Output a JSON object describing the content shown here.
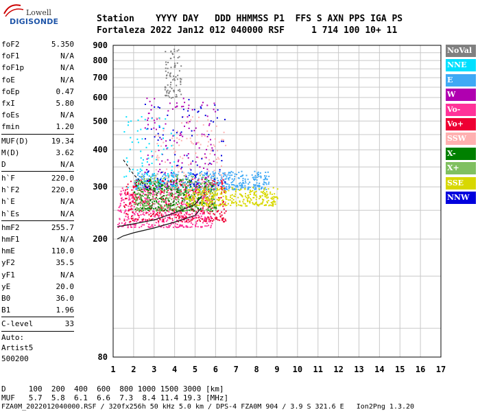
{
  "logo": {
    "line1": "Lowell",
    "line2": "DIGISONDE"
  },
  "header": {
    "row1": "Station    YYYY DAY   DDD HHMMSS P1  FFS S AXN PPS IGA PS",
    "row2": "Fortaleza 2022 Jan12 012 040000 RSF     1 714 100 10+ 11"
  },
  "params": {
    "group1": [
      {
        "name": "foF2",
        "value": "5.350"
      },
      {
        "name": "foF1",
        "value": "N/A"
      },
      {
        "name": "foF1p",
        "value": "N/A"
      },
      {
        "name": "foE",
        "value": "N/A"
      },
      {
        "name": "foEp",
        "value": "0.47"
      },
      {
        "name": "fxI",
        "value": "5.80"
      },
      {
        "name": "foEs",
        "value": "N/A"
      },
      {
        "name": "fmin",
        "value": "1.20"
      }
    ],
    "group2": [
      {
        "name": "MUF(D)",
        "value": "19.34"
      },
      {
        "name": "M(D)",
        "value": "3.62"
      },
      {
        "name": "D",
        "value": "N/A"
      }
    ],
    "group3": [
      {
        "name": "h`F",
        "value": "220.0"
      },
      {
        "name": "h`F2",
        "value": "220.0"
      },
      {
        "name": "h`E",
        "value": "N/A"
      },
      {
        "name": "h`Es",
        "value": "N/A"
      }
    ],
    "group4": [
      {
        "name": "hmF2",
        "value": "255.7"
      },
      {
        "name": "hmF1",
        "value": "N/A"
      },
      {
        "name": "hmE",
        "value": "110.0"
      },
      {
        "name": "yF2",
        "value": "35.5"
      },
      {
        "name": "yF1",
        "value": "N/A"
      },
      {
        "name": "yE",
        "value": "20.0"
      },
      {
        "name": "B0",
        "value": "36.0"
      },
      {
        "name": "B1",
        "value": "1.96"
      }
    ],
    "clevel": {
      "name": "C-level",
      "value": "33"
    },
    "auto": [
      "Auto:",
      "Artist5",
      "500200"
    ]
  },
  "legend": [
    {
      "label": "NoVal",
      "color": "#808080"
    },
    {
      "label": "NNE",
      "color": "#00e0ff"
    },
    {
      "label": "E",
      "color": "#3fa9f5"
    },
    {
      "label": "W",
      "color": "#b000b0"
    },
    {
      "label": "Vo-",
      "color": "#ff3399"
    },
    {
      "label": "Vo+",
      "color": "#ee0033"
    },
    {
      "label": "SSW",
      "color": "#ffb0b0"
    },
    {
      "label": "X-",
      "color": "#008000"
    },
    {
      "label": "X+",
      "color": "#80c060"
    },
    {
      "label": "SSE",
      "color": "#d8d800"
    },
    {
      "label": "NNW",
      "color": "#0000dd"
    }
  ],
  "footer": {
    "d_label": "D",
    "d_values": "100  200  400  600  800 1000 1500 3000 [km]",
    "muf_label": "MUF",
    "muf_values": "5.7  5.8  6.1  6.6  7.3  8.4 11.4 19.3 [MHz]",
    "file_line": "FZA0M_2022012040000.RSF / 320fx256h 50 kHz 5.0 km / DPS-4 FZA0M 904 / 3.9 S 321.6 E   Ion2Png 1.3.20"
  },
  "chart_data": {
    "type": "scatter",
    "title": "",
    "xlabel": "",
    "ylabel": "",
    "xlim": [
      1,
      17
    ],
    "ylim": [
      80,
      900
    ],
    "x_ticks": [
      1,
      2,
      3,
      4,
      5,
      6,
      7,
      8,
      9,
      10,
      11,
      12,
      13,
      14,
      15,
      16,
      17
    ],
    "y_ticks": [
      80,
      200,
      300,
      400,
      500,
      600,
      700,
      800,
      900
    ],
    "y_scale": "log",
    "grid": true,
    "legend_position": "right",
    "clusters": [
      {
        "series": "E",
        "f": [
          2.0,
          8.6
        ],
        "h": [
          295,
          340
        ],
        "density": 0.9
      },
      {
        "series": "Vo-",
        "f": [
          1.2,
          5.8
        ],
        "h": [
          220,
          300
        ],
        "density": 0.9
      },
      {
        "series": "Vo+",
        "f": [
          1.5,
          6.5
        ],
        "h": [
          230,
          320
        ],
        "density": 0.7
      },
      {
        "series": "X-",
        "f": [
          2.0,
          6.0
        ],
        "h": [
          250,
          320
        ],
        "density": 0.6
      },
      {
        "series": "X+",
        "f": [
          2.0,
          6.0
        ],
        "h": [
          250,
          330
        ],
        "density": 0.5
      },
      {
        "series": "SSE",
        "f": [
          4.5,
          9.0
        ],
        "h": [
          260,
          300
        ],
        "density": 0.6
      },
      {
        "series": "W",
        "f": [
          2.5,
          6.0
        ],
        "h": [
          300,
          600
        ],
        "density": 0.25
      },
      {
        "series": "SSW",
        "f": [
          3.0,
          6.5
        ],
        "h": [
          300,
          520
        ],
        "density": 0.25
      },
      {
        "series": "NNW",
        "f": [
          2.5,
          6.5
        ],
        "h": [
          300,
          600
        ],
        "density": 0.15
      },
      {
        "series": "NNE",
        "f": [
          1.5,
          4.0
        ],
        "h": [
          300,
          520
        ],
        "density": 0.15
      },
      {
        "series": "NoVal",
        "f": [
          3.5,
          4.3
        ],
        "h": [
          600,
          880
        ],
        "density": 0.15
      }
    ],
    "trace_lower": {
      "f": [
        1.2,
        1.5,
        2.0,
        3.0,
        4.0,
        5.0,
        5.3
      ],
      "h": [
        200,
        205,
        210,
        218,
        228,
        240,
        255
      ]
    },
    "trace_upper": {
      "f": [
        1.2,
        1.5,
        2.0,
        3.0,
        4.0,
        5.0,
        5.35
      ],
      "h": [
        220,
        222,
        225,
        232,
        245,
        262,
        280
      ]
    },
    "trace_dashed": {
      "f": [
        1.5,
        2.0,
        2.6,
        3.2
      ],
      "h": [
        370,
        330,
        300,
        285
      ]
    }
  }
}
